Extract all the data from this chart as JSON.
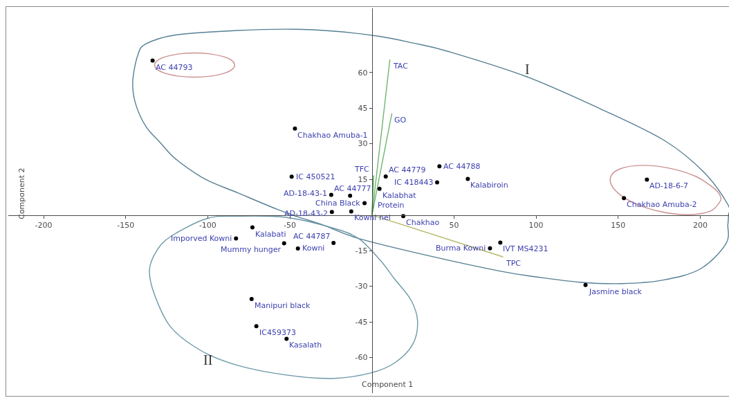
{
  "chart_data": {
    "type": "scatter",
    "xlabel": "Component 1",
    "ylabel": "Component 2",
    "xlim": [
      -221.5,
      217.5
    ],
    "ylim": [
      -75,
      87
    ],
    "xticks": [
      -200,
      -150,
      -100,
      -50,
      50,
      100,
      150,
      200
    ],
    "yticks": [
      -60,
      -45,
      -30,
      -15,
      15,
      30,
      45,
      60
    ],
    "marker": "circle",
    "line_style": "solid",
    "annotations": [
      "I",
      "II"
    ],
    "series": [
      {
        "type": "line",
        "marker": "none",
        "name": "TAC",
        "color": "#6fb46f",
        "x": [
          0,
          10.9
        ],
        "values": [
          0,
          65.3
        ]
      },
      {
        "type": "line",
        "marker": "none",
        "name": "GO",
        "color": "#6fb46f",
        "x": [
          0,
          12.1
        ],
        "values": [
          0,
          42.6
        ]
      },
      {
        "type": "line",
        "marker": "none",
        "name": "TFC",
        "color": "#4ea84e",
        "x": [
          0,
          1
        ],
        "values": [
          0,
          16.5
        ]
      },
      {
        "type": "line",
        "marker": "none",
        "name": "Protein",
        "color": "#4ea84e",
        "x": [
          0,
          1
        ],
        "values": [
          0,
          4
        ]
      },
      {
        "type": "line",
        "marker": "none",
        "name": "TPC",
        "color": "#b5b86a",
        "x": [
          0,
          79.7
        ],
        "values": [
          0,
          -17.6
        ]
      },
      {
        "name": "AC 44793",
        "color": "#000000",
        "x": [
          -133.6
        ],
        "values": [
          65.0
        ]
      },
      {
        "name": "Chakhao Amuba-1",
        "color": "#000000",
        "x": [
          -46.9
        ],
        "values": [
          36.4
        ]
      },
      {
        "name": "IC 450521",
        "color": "#000000",
        "x": [
          -48.9
        ],
        "values": [
          16.1
        ]
      },
      {
        "name": "AD-18-43-1",
        "color": "#000000",
        "x": [
          -24.8
        ],
        "values": [
          8.5
        ]
      },
      {
        "name": "AC 44777",
        "color": "#000000",
        "x": [
          -13.3
        ],
        "values": [
          8.1
        ]
      },
      {
        "name": "China Black",
        "color": "#000000",
        "x": [
          -4.5
        ],
        "values": [
          5.0
        ]
      },
      {
        "name": "AD-18-43-2",
        "color": "#000000",
        "x": [
          -24.4
        ],
        "values": [
          1.3
        ]
      },
      {
        "name": "Kowni nei",
        "color": "#000000",
        "x": [
          -12.6
        ],
        "values": [
          1.5
        ]
      },
      {
        "name": "Kalabhat",
        "color": "#000000",
        "x": [
          4.6
        ],
        "values": [
          11.0
        ]
      },
      {
        "name": "AC 44779",
        "color": "#000000",
        "x": [
          8.4
        ],
        "values": [
          16.2
        ]
      },
      {
        "name": "IC 418443",
        "color": "#000000",
        "x": [
          39.7
        ],
        "values": [
          13.7
        ]
      },
      {
        "name": "AC 44788",
        "color": "#000000",
        "x": [
          41.1
        ],
        "values": [
          20.5
        ]
      },
      {
        "name": "Kalabiroin",
        "color": "#000000",
        "x": [
          58.4
        ],
        "values": [
          15.2
        ]
      },
      {
        "name": "AD-18-6-7",
        "color": "#000000",
        "x": [
          167.5
        ],
        "values": [
          14.9
        ]
      },
      {
        "name": "Chakhao Amuba-2",
        "color": "#000000",
        "x": [
          153.5
        ],
        "values": [
          7.1
        ]
      },
      {
        "name": "Chakhao",
        "color": "#000000",
        "x": [
          19.1
        ],
        "values": [
          -0.5
        ]
      },
      {
        "name": "Kalabati",
        "color": "#000000",
        "x": [
          -72.8
        ],
        "values": [
          -5.2
        ]
      },
      {
        "name": "Imporved Kowni",
        "color": "#000000",
        "x": [
          -82.8
        ],
        "values": [
          -9.9
        ]
      },
      {
        "name": "Mummy hunger",
        "color": "#000000",
        "x": [
          -53.5
        ],
        "values": [
          -11.9
        ]
      },
      {
        "name": "Kowni",
        "color": "#000000",
        "x": [
          -45.1
        ],
        "values": [
          -14.1
        ]
      },
      {
        "name": "AC 44787",
        "color": "#000000",
        "x": [
          -23.4
        ],
        "values": [
          -11.8
        ]
      },
      {
        "name": "Burma Kowni",
        "color": "#000000",
        "x": [
          71.9
        ],
        "values": [
          -14.0
        ]
      },
      {
        "name": "IVT MS4231",
        "color": "#000000",
        "x": [
          78.2
        ],
        "values": [
          -11.6
        ]
      },
      {
        "name": "Jasmine black",
        "color": "#000000",
        "x": [
          130.1
        ],
        "values": [
          -29.5
        ]
      },
      {
        "name": "Manipuri black",
        "color": "#000000",
        "x": [
          -73.3
        ],
        "values": [
          -35.4
        ]
      },
      {
        "name": "IC459373",
        "color": "#000000",
        "x": [
          -70.4
        ],
        "values": [
          -46.8
        ]
      },
      {
        "name": "Kasalath",
        "color": "#000000",
        "x": [
          -52.0
        ],
        "values": [
          -52.1
        ]
      }
    ]
  }
}
